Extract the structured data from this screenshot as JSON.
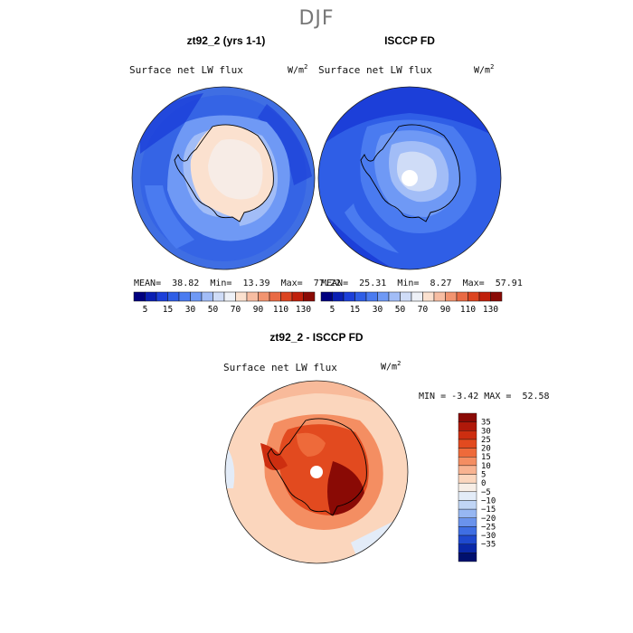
{
  "season": "DJF",
  "panels": [
    {
      "title": "zt92_2 (yrs 1-1)",
      "variable": "Surface net LW flux",
      "units": "W/m",
      "units_exp": "2",
      "mean_label": "MEAN=",
      "mean": "38.82",
      "min_label": "Min=",
      "min": "13.39",
      "max_label": "Max=",
      "max": "77.22"
    },
    {
      "title": "ISCCP FD",
      "variable": "Surface net LW flux",
      "units": "W/m",
      "units_exp": "2",
      "mean_label": "MEAN=",
      "mean": "25.31",
      "min_label": "Min=",
      "min": "8.27",
      "max_label": "Max=",
      "max": "57.91"
    }
  ],
  "abs_colorbar": {
    "tick_labels": [
      "5",
      "15",
      "30",
      "50",
      "70",
      "90",
      "110",
      "130"
    ],
    "colors": [
      "#00007f",
      "#0a1fb3",
      "#1c3fd9",
      "#2f5ee6",
      "#4a7bf0",
      "#6f99f5",
      "#a2bdf7",
      "#cfdcf7",
      "#eef1f7",
      "#fbe1cf",
      "#f7bda2",
      "#f29470",
      "#e96a44",
      "#dc4420",
      "#c0200b",
      "#8a0a05"
    ]
  },
  "diff_panel": {
    "title": "zt92_2 - ISCCP FD",
    "variable": "Surface net LW flux",
    "units": "W/m",
    "units_exp": "2",
    "min_label": "MIN =",
    "min": "-3.42",
    "max_label": "MAX =",
    "max": "52.58"
  },
  "diff_colorbar": {
    "tick_labels": [
      "35",
      "30",
      "25",
      "20",
      "15",
      "10",
      "5",
      "0",
      "−5",
      "−10",
      "−15",
      "−20",
      "−25",
      "−30",
      "−35"
    ],
    "colors": [
      "#8a0a05",
      "#b0190a",
      "#cd2e10",
      "#e24a1f",
      "#ee6a3a",
      "#f48e62",
      "#f8b391",
      "#fbd6bd",
      "#f7eee6",
      "#e3ecf8",
      "#c0d5f5",
      "#97b7f2",
      "#6a93ec",
      "#3f6ee3",
      "#1f49cf",
      "#0a28a8",
      "#00106e"
    ]
  },
  "colors": {
    "coast": "#000000",
    "background": "#ffffff"
  }
}
